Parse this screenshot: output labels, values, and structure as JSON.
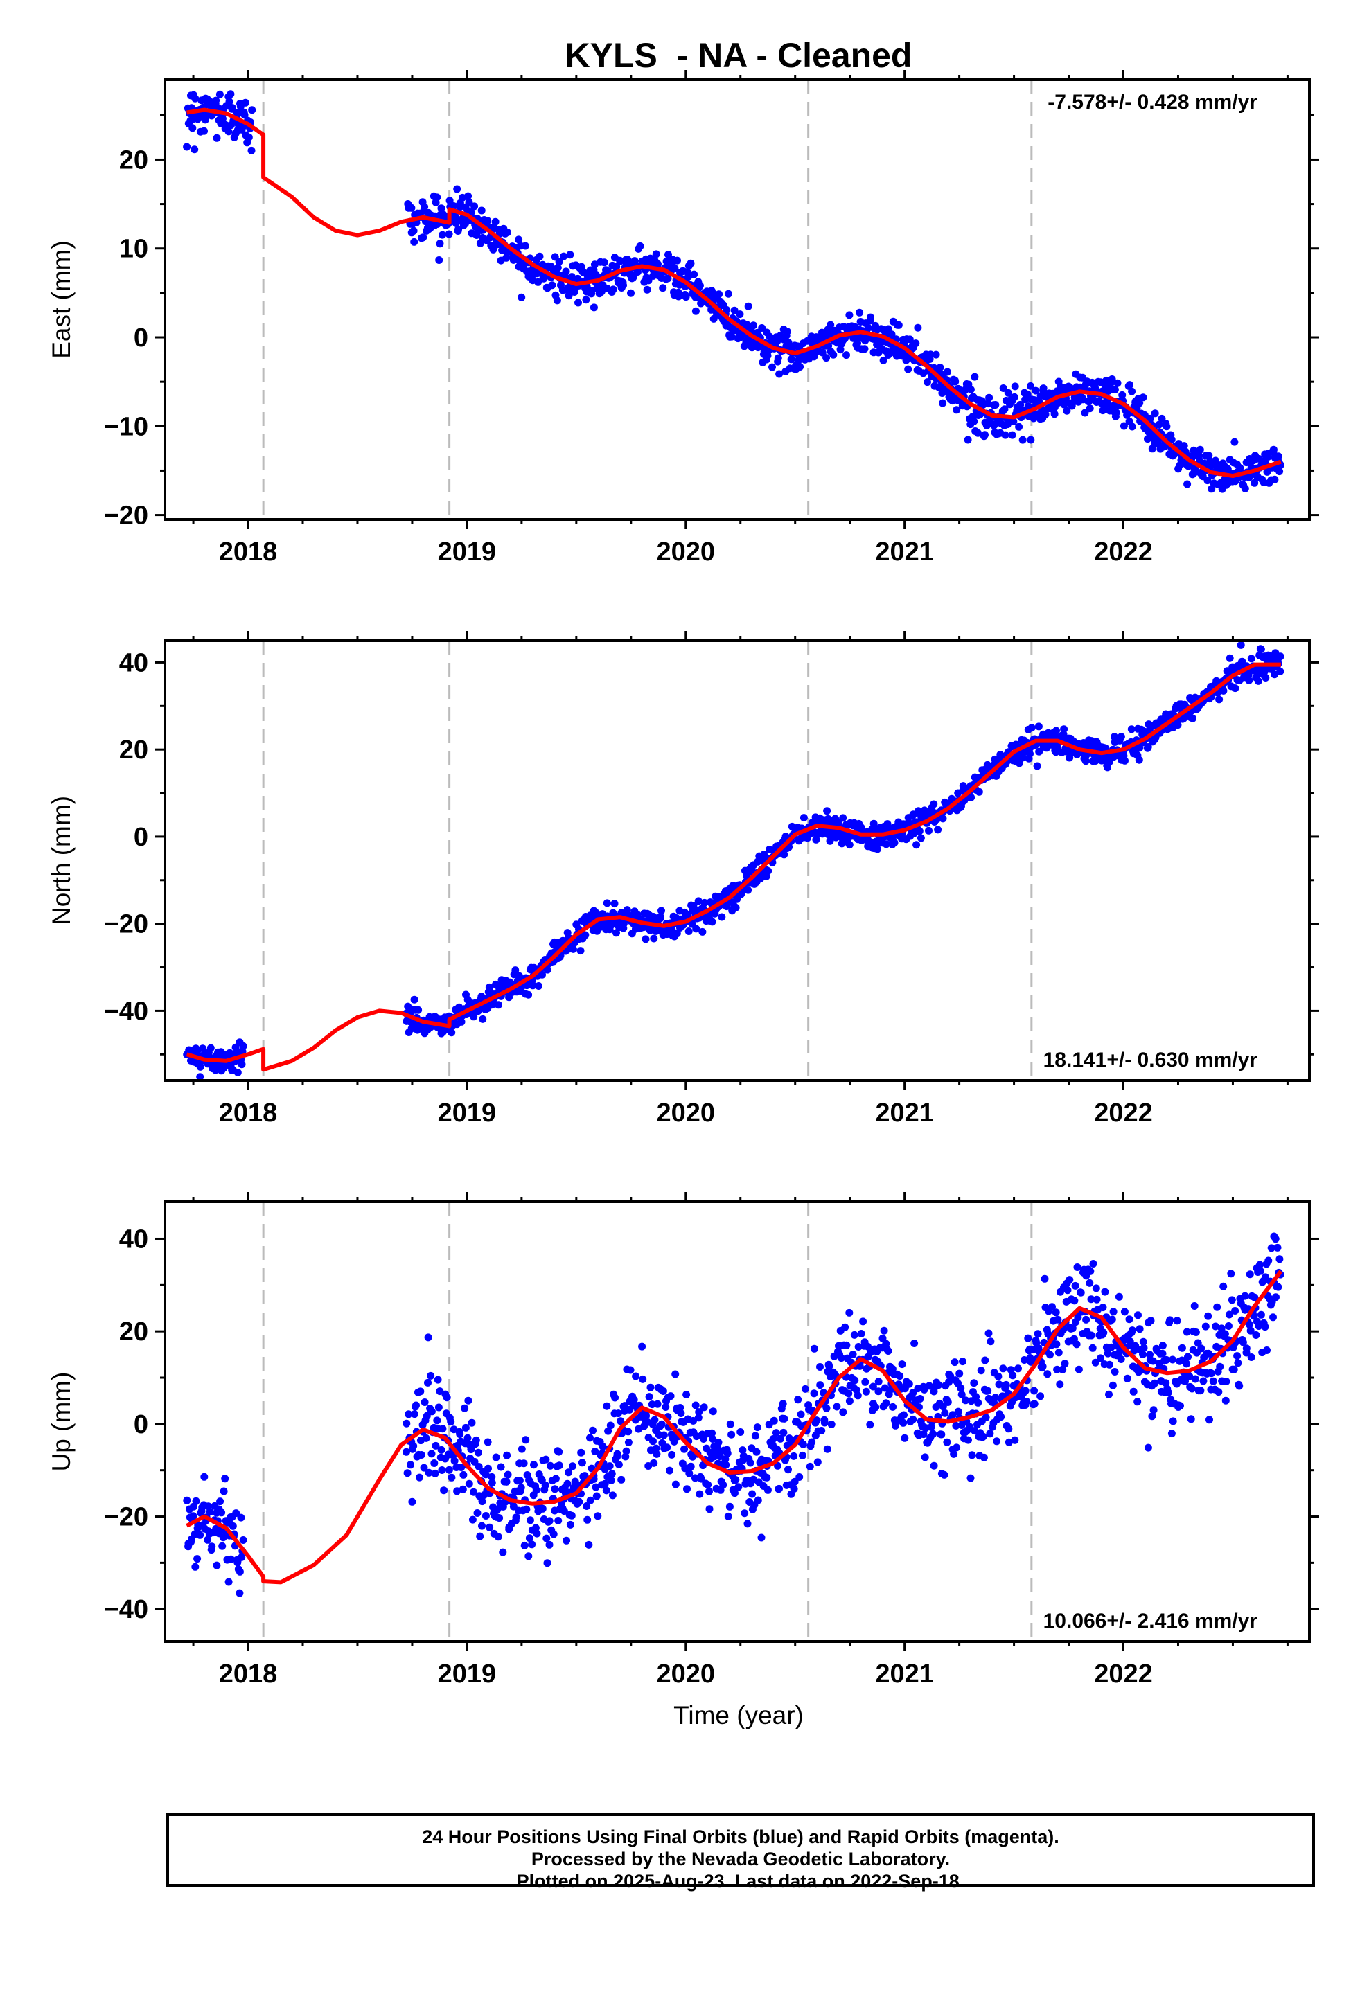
{
  "title": "KYLS  - NA - Cleaned",
  "xlabel": "Time (year)",
  "footer": {
    "line1": "24 Hour Positions Using Final Orbits (blue) and Rapid Orbits (magenta).",
    "line2": "Processed by the Nevada Geodetic Laboratory.",
    "line3": "Plotted on 2025-Aug-23. Last data on 2022-Sep-18."
  },
  "colors": {
    "data": "#0000ff",
    "model": "#ff0000",
    "event_lines": "#bbbbbb"
  },
  "chart_data": [
    {
      "type": "scatter",
      "panel": "east",
      "ylabel": "East (mm)",
      "rate_label": "-7.578+/- 0.428 mm/yr",
      "rate_position": "top-right",
      "xlim": [
        2017.62,
        2022.85
      ],
      "ylim": [
        -20.5,
        29
      ],
      "x_ticks": [
        2018,
        2019,
        2020,
        2021,
        2022
      ],
      "y_ticks": [
        -20,
        -10,
        0,
        10,
        20
      ],
      "event_lines": [
        2018.07,
        2018.92,
        2020.56,
        2021.58
      ],
      "data_segments": [
        {
          "x_start": 2017.72,
          "x_end": 2018.02,
          "model_start": 2017.72,
          "model_end": 2018.07,
          "scatter": 1.4
        },
        {
          "x_start": 2018.73,
          "x_end": 2022.72,
          "model_start": 2018.07,
          "model_end": 2022.72,
          "scatter": 1.1
        }
      ],
      "model": [
        [
          2017.72,
          25.3
        ],
        [
          2017.8,
          25.6
        ],
        [
          2017.9,
          25.2
        ],
        [
          2018.0,
          24.0
        ],
        [
          2018.07,
          22.8
        ],
        [
          2018.07,
          18.0
        ],
        [
          2018.2,
          15.8
        ],
        [
          2018.3,
          13.5
        ],
        [
          2018.4,
          12.0
        ],
        [
          2018.5,
          11.5
        ],
        [
          2018.6,
          12.0
        ],
        [
          2018.7,
          13.0
        ],
        [
          2018.8,
          13.5
        ],
        [
          2018.92,
          12.9
        ],
        [
          2018.92,
          14.4
        ],
        [
          2019.0,
          13.8
        ],
        [
          2019.1,
          12.0
        ],
        [
          2019.2,
          10.0
        ],
        [
          2019.3,
          8.2
        ],
        [
          2019.4,
          6.8
        ],
        [
          2019.5,
          6.0
        ],
        [
          2019.6,
          6.4
        ],
        [
          2019.7,
          7.5
        ],
        [
          2019.8,
          8.0
        ],
        [
          2019.9,
          7.6
        ],
        [
          2020.0,
          6.2
        ],
        [
          2020.1,
          4.2
        ],
        [
          2020.2,
          2.0
        ],
        [
          2020.3,
          0.2
        ],
        [
          2020.4,
          -1.2
        ],
        [
          2020.5,
          -1.8
        ],
        [
          2020.6,
          -1.0
        ],
        [
          2020.7,
          0.2
        ],
        [
          2020.8,
          0.6
        ],
        [
          2020.9,
          0.1
        ],
        [
          2021.0,
          -1.2
        ],
        [
          2021.1,
          -3.2
        ],
        [
          2021.2,
          -5.5
        ],
        [
          2021.3,
          -7.5
        ],
        [
          2021.4,
          -8.8
        ],
        [
          2021.5,
          -9.0
        ],
        [
          2021.6,
          -8.0
        ],
        [
          2021.7,
          -6.7
        ],
        [
          2021.8,
          -6.1
        ],
        [
          2021.9,
          -6.4
        ],
        [
          2022.0,
          -7.5
        ],
        [
          2022.1,
          -9.4
        ],
        [
          2022.2,
          -11.8
        ],
        [
          2022.3,
          -13.8
        ],
        [
          2022.4,
          -15.2
        ],
        [
          2022.5,
          -15.6
        ],
        [
          2022.6,
          -15.0
        ],
        [
          2022.72,
          -14.0
        ]
      ]
    },
    {
      "type": "scatter",
      "panel": "north",
      "ylabel": "North (mm)",
      "rate_label": "18.141+/- 0.630 mm/yr",
      "rate_position": "bottom-right",
      "xlim": [
        2017.62,
        2022.85
      ],
      "ylim": [
        -56,
        45
      ],
      "x_ticks": [
        2018,
        2019,
        2020,
        2021,
        2022
      ],
      "y_ticks": [
        -40,
        -20,
        0,
        20,
        40
      ],
      "event_lines": [
        2018.07,
        2018.92,
        2020.56,
        2021.58
      ],
      "data_segments": [
        {
          "x_start": 2017.72,
          "x_end": 2017.98,
          "model_start": 2017.72,
          "model_end": 2018.07,
          "scatter": 1.4
        },
        {
          "x_start": 2018.72,
          "x_end": 2022.72,
          "model_start": 2018.07,
          "model_end": 2022.72,
          "scatter": 1.5
        }
      ],
      "model": [
        [
          2017.72,
          -50.0
        ],
        [
          2017.8,
          -51.2
        ],
        [
          2017.9,
          -51.5
        ],
        [
          2018.0,
          -50.0
        ],
        [
          2018.07,
          -48.8
        ],
        [
          2018.07,
          -53.5
        ],
        [
          2018.2,
          -51.5
        ],
        [
          2018.3,
          -48.5
        ],
        [
          2018.4,
          -44.5
        ],
        [
          2018.5,
          -41.5
        ],
        [
          2018.6,
          -40.0
        ],
        [
          2018.7,
          -40.5
        ],
        [
          2018.8,
          -42.5
        ],
        [
          2018.92,
          -43.5
        ],
        [
          2018.92,
          -42.0
        ],
        [
          2019.0,
          -40.0
        ],
        [
          2019.1,
          -37.5
        ],
        [
          2019.2,
          -35.0
        ],
        [
          2019.3,
          -32.0
        ],
        [
          2019.4,
          -27.5
        ],
        [
          2019.5,
          -22.5
        ],
        [
          2019.6,
          -19.0
        ],
        [
          2019.7,
          -18.5
        ],
        [
          2019.8,
          -19.8
        ],
        [
          2019.9,
          -20.5
        ],
        [
          2020.0,
          -19.5
        ],
        [
          2020.1,
          -17.0
        ],
        [
          2020.2,
          -14.0
        ],
        [
          2020.3,
          -9.5
        ],
        [
          2020.4,
          -4.5
        ],
        [
          2020.5,
          0.5
        ],
        [
          2020.6,
          2.5
        ],
        [
          2020.7,
          2.0
        ],
        [
          2020.8,
          0.5
        ],
        [
          2020.9,
          0.5
        ],
        [
          2021.0,
          1.5
        ],
        [
          2021.1,
          3.5
        ],
        [
          2021.2,
          6.5
        ],
        [
          2021.3,
          10.5
        ],
        [
          2021.4,
          15.0
        ],
        [
          2021.5,
          19.5
        ],
        [
          2021.6,
          22.0
        ],
        [
          2021.7,
          22.0
        ],
        [
          2021.8,
          20.0
        ],
        [
          2021.9,
          19.2
        ],
        [
          2022.0,
          20.0
        ],
        [
          2022.1,
          22.5
        ],
        [
          2022.2,
          26.0
        ],
        [
          2022.3,
          29.5
        ],
        [
          2022.4,
          33.0
        ],
        [
          2022.5,
          37.0
        ],
        [
          2022.6,
          39.5
        ],
        [
          2022.72,
          39.5
        ]
      ]
    },
    {
      "type": "scatter",
      "panel": "up",
      "ylabel": "Up (mm)",
      "rate_label": "10.066+/- 2.416 mm/yr",
      "rate_position": "bottom-right",
      "xlim": [
        2017.62,
        2022.85
      ],
      "ylim": [
        -47,
        48
      ],
      "x_ticks": [
        2018,
        2019,
        2020,
        2021,
        2022
      ],
      "y_ticks": [
        -40,
        -20,
        0,
        20,
        40
      ],
      "event_lines": [
        2018.07,
        2018.92,
        2020.56,
        2021.58
      ],
      "data_segments": [
        {
          "x_start": 2017.72,
          "x_end": 2017.98,
          "model_start": 2017.72,
          "model_end": 2018.07,
          "scatter": 5.5
        },
        {
          "x_start": 2018.72,
          "x_end": 2022.72,
          "model_start": 2018.07,
          "model_end": 2022.72,
          "scatter": 5.5
        }
      ],
      "model": [
        [
          2017.72,
          -22.0
        ],
        [
          2017.8,
          -20.0
        ],
        [
          2017.9,
          -22.5
        ],
        [
          2018.0,
          -28.5
        ],
        [
          2018.07,
          -33.0
        ],
        [
          2018.07,
          -34.0
        ],
        [
          2018.15,
          -34.2
        ],
        [
          2018.3,
          -30.5
        ],
        [
          2018.45,
          -24.0
        ],
        [
          2018.6,
          -12.0
        ],
        [
          2018.7,
          -4.5
        ],
        [
          2018.8,
          -1.2
        ],
        [
          2018.9,
          -3.0
        ],
        [
          2019.0,
          -9.0
        ],
        [
          2019.1,
          -14.0
        ],
        [
          2019.2,
          -16.5
        ],
        [
          2019.3,
          -17.2
        ],
        [
          2019.4,
          -16.8
        ],
        [
          2019.5,
          -15.0
        ],
        [
          2019.6,
          -9.5
        ],
        [
          2019.7,
          -1.0
        ],
        [
          2019.8,
          3.5
        ],
        [
          2019.9,
          1.5
        ],
        [
          2020.0,
          -4.0
        ],
        [
          2020.1,
          -8.5
        ],
        [
          2020.2,
          -10.5
        ],
        [
          2020.3,
          -10.2
        ],
        [
          2020.4,
          -8.5
        ],
        [
          2020.5,
          -4.5
        ],
        [
          2020.6,
          3.0
        ],
        [
          2020.7,
          10.0
        ],
        [
          2020.8,
          14.0
        ],
        [
          2020.9,
          11.5
        ],
        [
          2021.0,
          5.0
        ],
        [
          2021.1,
          1.0
        ],
        [
          2021.2,
          0.5
        ],
        [
          2021.3,
          1.5
        ],
        [
          2021.4,
          3.0
        ],
        [
          2021.5,
          6.5
        ],
        [
          2021.6,
          13.0
        ],
        [
          2021.7,
          20.5
        ],
        [
          2021.8,
          25.0
        ],
        [
          2021.9,
          23.0
        ],
        [
          2022.0,
          16.5
        ],
        [
          2022.1,
          12.0
        ],
        [
          2022.2,
          11.0
        ],
        [
          2022.3,
          11.5
        ],
        [
          2022.4,
          13.5
        ],
        [
          2022.5,
          18.0
        ],
        [
          2022.6,
          25.5
        ],
        [
          2022.72,
          33.0
        ]
      ]
    }
  ]
}
